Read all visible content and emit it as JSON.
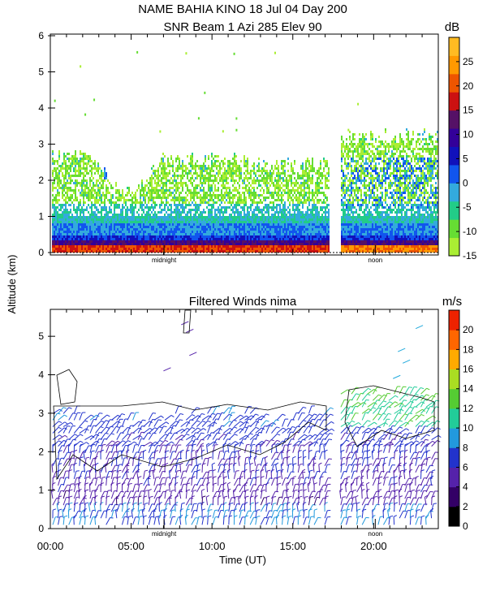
{
  "title": "NAME BAHIA KINO  18 Jul 04 Day 200",
  "chart_data": [
    {
      "type": "heatmap",
      "title": "SNR Beam 1 Azi 285 Elev 90",
      "y_ticks": [
        "0",
        "1",
        "2",
        "3",
        "4",
        "5",
        "6"
      ],
      "ylim": [
        0,
        6.1
      ],
      "xlim": [
        0,
        24
      ],
      "colorbar": {
        "unit": "dB",
        "range": [
          -15,
          30
        ],
        "tick_labels": [
          "25",
          "20",
          "15",
          "10",
          "5",
          "0",
          "-5",
          "-10",
          "-15"
        ],
        "colors": [
          "#aaee33",
          "#66dd33",
          "#22cc88",
          "#33aadd",
          "#1155ee",
          "#1111bb",
          "#330099",
          "#551166",
          "#cc1111",
          "#ee5500",
          "#ff9900",
          "#ffbb22"
        ]
      },
      "markers": [
        "midnight",
        "noon"
      ],
      "data_gap_hours": [
        17.2,
        17.9
      ]
    },
    {
      "type": "wind-barbs",
      "title": "Filtered Winds nima",
      "y_ticks": [
        "0",
        "1",
        "2",
        "3",
        "4",
        "5"
      ],
      "ylim": [
        0,
        5.7
      ],
      "xlim": [
        0,
        24
      ],
      "colorbar": {
        "unit": "m/s",
        "range": [
          0,
          22
        ],
        "tick_labels": [
          "20",
          "18",
          "16",
          "14",
          "12",
          "10",
          "8",
          "6",
          "4",
          "2",
          "0"
        ],
        "colors": [
          "#000000",
          "#330066",
          "#5522aa",
          "#2233cc",
          "#2299dd",
          "#22cc99",
          "#55cc33",
          "#aadd22",
          "#ffaa00",
          "#ff6600",
          "#ee2200"
        ]
      },
      "markers": [
        "midnight",
        "noon"
      ],
      "data_gap_hours": [
        17.2,
        17.9
      ]
    }
  ],
  "shared_axes": {
    "ylabel": "Altitude (km)",
    "xlabel": "Time (UT)",
    "x_ticks": [
      "00:00",
      "05:00",
      "10:00",
      "15:00",
      "20:00"
    ]
  }
}
